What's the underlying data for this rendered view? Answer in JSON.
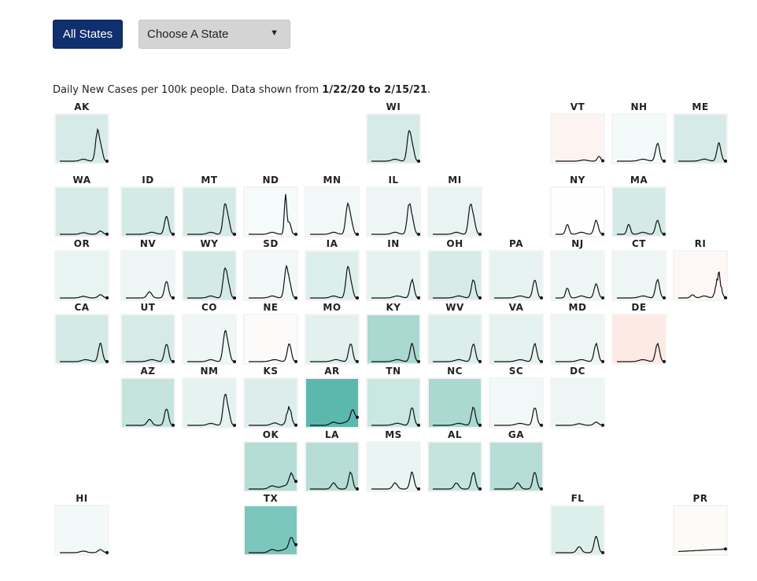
{
  "controls": {
    "all_states_label": "All States",
    "choose_state_label": "Choose A State",
    "dropdown_arrow": "▼"
  },
  "caption": {
    "prefix": "Daily New Cases per 100k people. Data shown from ",
    "start": "1/22/20",
    "mid": " to ",
    "end": "2/15/21",
    "suffix": "."
  },
  "states": [
    {
      "abbr": "AK",
      "row": 0,
      "col": 0,
      "color": "#d6ebe7",
      "shape": "fall"
    },
    {
      "abbr": "WI",
      "row": 0,
      "col": 5,
      "color": "#d6ebe7",
      "shape": "fall"
    },
    {
      "abbr": "VT",
      "row": 0,
      "col": 8,
      "color": "#fdf4f2",
      "shape": "winter-late"
    },
    {
      "abbr": "NH",
      "row": 0,
      "col": 9,
      "color": "#f2fafa",
      "shape": "winter"
    },
    {
      "abbr": "ME",
      "row": 0,
      "col": 10,
      "color": "#d6ebe7",
      "shape": "winter"
    },
    {
      "abbr": "WA",
      "row": 1,
      "col": 0,
      "color": "#d6ebe7",
      "shape": "flat"
    },
    {
      "abbr": "ID",
      "row": 1,
      "col": 1,
      "color": "#d4eae6",
      "shape": "winter"
    },
    {
      "abbr": "MT",
      "row": 1,
      "col": 2,
      "color": "#d4eae6",
      "shape": "fall"
    },
    {
      "abbr": "ND",
      "row": 1,
      "col": 3,
      "color": "#f5fafa",
      "shape": "spike"
    },
    {
      "abbr": "MN",
      "row": 1,
      "col": 4,
      "color": "#f2f8f7",
      "shape": "fall"
    },
    {
      "abbr": "IL",
      "row": 1,
      "col": 5,
      "color": "#eef6f5",
      "shape": "fall"
    },
    {
      "abbr": "MI",
      "row": 1,
      "col": 6,
      "color": "#e8f3f2",
      "shape": "fall"
    },
    {
      "abbr": "NY",
      "row": 1,
      "col": 8,
      "color": "#fefefe",
      "shape": "spring-winter"
    },
    {
      "abbr": "MA",
      "row": 1,
      "col": 9,
      "color": "#d4eae6",
      "shape": "spring-winter"
    },
    {
      "abbr": "OR",
      "row": 2,
      "col": 0,
      "color": "#e8f4f2",
      "shape": "flat"
    },
    {
      "abbr": "NV",
      "row": 2,
      "col": 1,
      "color": "#eef6f5",
      "shape": "summer-winter"
    },
    {
      "abbr": "WY",
      "row": 2,
      "col": 2,
      "color": "#d4eae6",
      "shape": "fall"
    },
    {
      "abbr": "SD",
      "row": 2,
      "col": 3,
      "color": "#f2f8f7",
      "shape": "fall"
    },
    {
      "abbr": "IA",
      "row": 2,
      "col": 4,
      "color": "#ddefec",
      "shape": "fall"
    },
    {
      "abbr": "IN",
      "row": 2,
      "col": 5,
      "color": "#e4f2f0",
      "shape": "winter"
    },
    {
      "abbr": "OH",
      "row": 2,
      "col": 6,
      "color": "#d6ebe7",
      "shape": "winter"
    },
    {
      "abbr": "PA",
      "row": 2,
      "col": 7,
      "color": "#e6f3f1",
      "shape": "winter"
    },
    {
      "abbr": "NJ",
      "row": 2,
      "col": 8,
      "color": "#eef6f5",
      "shape": "spring-winter"
    },
    {
      "abbr": "CT",
      "row": 2,
      "col": 9,
      "color": "#eef6f5",
      "shape": "winter"
    },
    {
      "abbr": "RI",
      "row": 2,
      "col": 10,
      "color": "#fdf8f6",
      "shape": "noisy"
    },
    {
      "abbr": "CA",
      "row": 3,
      "col": 0,
      "color": "#d4eae6",
      "shape": "winter"
    },
    {
      "abbr": "UT",
      "row": 3,
      "col": 1,
      "color": "#d6ebe7",
      "shape": "winter"
    },
    {
      "abbr": "CO",
      "row": 3,
      "col": 2,
      "color": "#eef7f6",
      "shape": "fall"
    },
    {
      "abbr": "NE",
      "row": 3,
      "col": 3,
      "color": "#fdfafa",
      "shape": "winter"
    },
    {
      "abbr": "MO",
      "row": 3,
      "col": 4,
      "color": "#e2f0ee",
      "shape": "winter"
    },
    {
      "abbr": "KY",
      "row": 3,
      "col": 5,
      "color": "#a9d9d1",
      "shape": "winter"
    },
    {
      "abbr": "WV",
      "row": 3,
      "col": 6,
      "color": "#dceeeb",
      "shape": "winter"
    },
    {
      "abbr": "VA",
      "row": 3,
      "col": 7,
      "color": "#e4f2f0",
      "shape": "winter"
    },
    {
      "abbr": "MD",
      "row": 3,
      "col": 8,
      "color": "#eef6f5",
      "shape": "winter"
    },
    {
      "abbr": "DE",
      "row": 3,
      "col": 9,
      "color": "#fdeae5",
      "shape": "winter"
    },
    {
      "abbr": "AZ",
      "row": 4,
      "col": 1,
      "color": "#c5e4de",
      "shape": "summer-winter"
    },
    {
      "abbr": "NM",
      "row": 4,
      "col": 2,
      "color": "#e4f2f0",
      "shape": "fall"
    },
    {
      "abbr": "KS",
      "row": 4,
      "col": 3,
      "color": "#dcedec",
      "shape": "noisy-winter"
    },
    {
      "abbr": "AR",
      "row": 4,
      "col": 4,
      "color": "#5ab9ac",
      "shape": "rise"
    },
    {
      "abbr": "TN",
      "row": 4,
      "col": 5,
      "color": "#cae7e1",
      "shape": "winter"
    },
    {
      "abbr": "NC",
      "row": 4,
      "col": 6,
      "color": "#a9d9d1",
      "shape": "winter"
    },
    {
      "abbr": "SC",
      "row": 4,
      "col": 7,
      "color": "#f2f8f7",
      "shape": "winter"
    },
    {
      "abbr": "DC",
      "row": 4,
      "col": 8,
      "color": "#eef6f5",
      "shape": "flat"
    },
    {
      "abbr": "OK",
      "row": 5,
      "col": 3,
      "color": "#b4ddd6",
      "shape": "rise"
    },
    {
      "abbr": "LA",
      "row": 5,
      "col": 4,
      "color": "#b6ddd6",
      "shape": "summer-winter"
    },
    {
      "abbr": "MS",
      "row": 5,
      "col": 5,
      "color": "#eaf4f3",
      "shape": "summer-winter"
    },
    {
      "abbr": "AL",
      "row": 5,
      "col": 6,
      "color": "#c5e4de",
      "shape": "summer-winter"
    },
    {
      "abbr": "GA",
      "row": 5,
      "col": 7,
      "color": "#b6ddd6",
      "shape": "summer-winter"
    },
    {
      "abbr": "HI",
      "row": 6,
      "col": 0,
      "color": "#f2f9f8",
      "shape": "flat"
    },
    {
      "abbr": "TX",
      "row": 6,
      "col": 3,
      "color": "#7cc7bc",
      "shape": "rise"
    },
    {
      "abbr": "FL",
      "row": 6,
      "col": 8,
      "color": "#dcefeb",
      "shape": "summer-winter"
    },
    {
      "abbr": "PR",
      "row": 6,
      "col": 10,
      "color": "#fdfbf7",
      "shape": "slow"
    }
  ]
}
